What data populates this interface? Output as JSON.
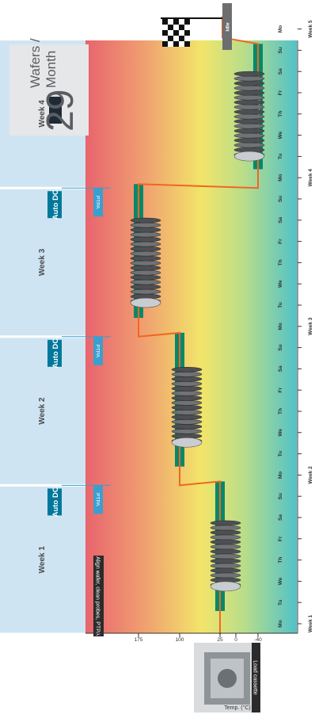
{
  "weeks": [
    "Week 1",
    "Week 2",
    "Week 3",
    "Week 4"
  ],
  "days": [
    "Mo",
    "Tu",
    "We",
    "Th",
    "Fr",
    "Sa",
    "Su",
    "Mo",
    "Tu",
    "We",
    "Th",
    "Fr",
    "Sa",
    "Su",
    "Mo",
    "Tu",
    "We",
    "Th",
    "Fr",
    "Sa",
    "Su",
    "Mo",
    "Tu",
    "We",
    "Th",
    "Fr",
    "Sa",
    "Su",
    "Mo"
  ],
  "week_axis_labels": [
    "Week 1",
    "Week 2",
    "Week 3",
    "Week 4",
    "Week 5"
  ],
  "y_axis": {
    "title": "Temp. (°C)",
    "ticks": [
      "175",
      "100",
      "25",
      "0",
      "-40"
    ]
  },
  "auto_dc_label": "Auto DC",
  "ptpa_label": "PTPA",
  "measure_label": "Measure",
  "idle_label": "Idle",
  "align_note": "Align wafer, clean probes, PTPA",
  "load_cassette": "Load cassette",
  "throughput": {
    "value": "29",
    "unit": "Wafers / Month"
  },
  "colors": {
    "week_band": "#cfe4f2",
    "measure_bar": "#00896b",
    "temp_line": "#f26522",
    "auto_dc_box": "#00789c",
    "ptpa_box": "#3a9fcf",
    "idle_bar": "#6d6e70",
    "gradient_hot": "#e8646e",
    "gradient_warm": "#f2e56a",
    "gradient_cold": "#52c2c8"
  }
}
